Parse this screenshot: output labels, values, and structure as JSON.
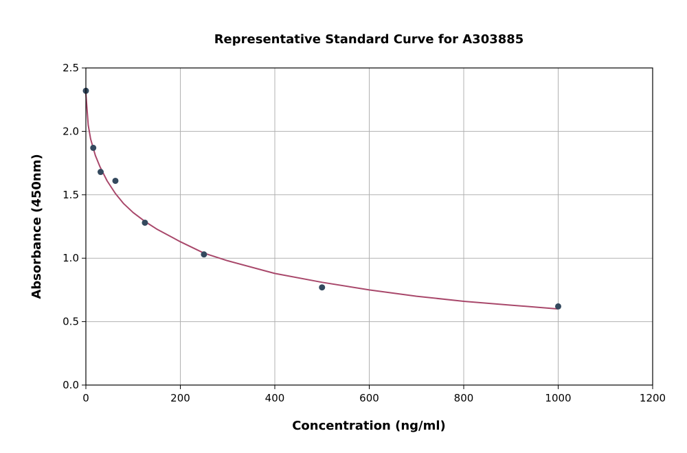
{
  "chart_data": {
    "type": "scatter",
    "title": "Representative Standard Curve for A303885",
    "xlabel": "Concentration (ng/ml)",
    "ylabel": "Absorbance (450nm)",
    "xlim": [
      0,
      1200
    ],
    "ylim": [
      0.0,
      2.5
    ],
    "xticks": [
      0,
      200,
      400,
      600,
      800,
      1000,
      1200
    ],
    "xtick_labels": [
      "0",
      "200",
      "400",
      "600",
      "800",
      "1000",
      "1200"
    ],
    "yticks": [
      0.0,
      0.5,
      1.0,
      1.5,
      2.0,
      2.5
    ],
    "ytick_labels": [
      "0.0",
      "0.5",
      "1.0",
      "1.5",
      "2.0",
      "2.5"
    ],
    "grid": true,
    "series": [
      {
        "kind": "points",
        "x": [
          0,
          15.6,
          31.25,
          62.5,
          125,
          250,
          500,
          1000
        ],
        "y": [
          2.32,
          1.87,
          1.68,
          1.61,
          1.28,
          1.03,
          0.77,
          0.62
        ],
        "color": "#34495e"
      },
      {
        "kind": "fit-curve",
        "x": [
          0,
          5,
          10,
          20,
          30,
          45,
          62.5,
          80,
          100,
          125,
          150,
          200,
          250,
          300,
          400,
          500,
          600,
          700,
          800,
          900,
          1000
        ],
        "y": [
          2.3,
          2.05,
          1.94,
          1.81,
          1.72,
          1.61,
          1.51,
          1.43,
          1.36,
          1.29,
          1.23,
          1.13,
          1.04,
          0.98,
          0.88,
          0.81,
          0.75,
          0.7,
          0.66,
          0.63,
          0.6
        ],
        "color": "#a8476a"
      }
    ]
  }
}
